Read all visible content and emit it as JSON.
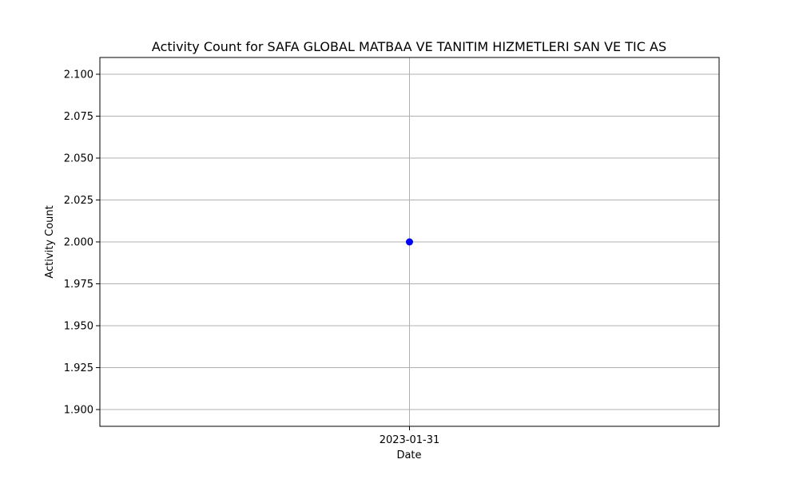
{
  "chart_data": {
    "type": "line",
    "title": "Activity Count for SAFA GLOBAL MATBAA VE TANITIM HIZMETLERI SAN VE TIC AS",
    "xlabel": "Date",
    "ylabel": "Activity Count",
    "x": [
      "2023-01-31"
    ],
    "series": [
      {
        "values": [
          2.0
        ],
        "color": "#0000ff",
        "marker": "circle"
      }
    ],
    "ylim": [
      1.89,
      2.11
    ],
    "yticks": [
      1.9,
      1.925,
      1.95,
      1.975,
      2.0,
      2.025,
      2.05,
      2.075,
      2.1
    ],
    "ytick_labels": [
      "1.900",
      "1.925",
      "1.950",
      "1.975",
      "2.000",
      "2.025",
      "2.050",
      "2.075",
      "2.100"
    ],
    "xtick_labels": [
      "2023-01-31"
    ],
    "grid": true,
    "legend": false
  }
}
